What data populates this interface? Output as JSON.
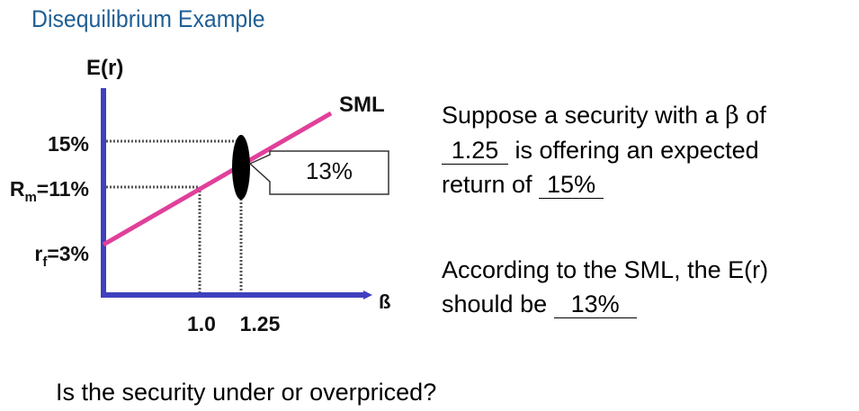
{
  "title": "Disequilibrium Example",
  "diagram": {
    "y_axis_label": "E(r)",
    "x_axis_label": "ß",
    "line_label": "SML",
    "y_ticks": [
      {
        "label": "15%"
      },
      {
        "label_main": "R",
        "label_sub": "m",
        "label_rest": "=11%"
      },
      {
        "label_main": "r",
        "label_sub": "f",
        "label_rest": "=3%"
      }
    ],
    "x_ticks": [
      "1.0",
      "1.25"
    ],
    "callout": "13%",
    "colors": {
      "axis": "#4040c0",
      "sml_line": "#e0409a",
      "dotted": "#555555",
      "marker": "#000000"
    }
  },
  "statement": {
    "line1_pre": "Suppose a security with a ",
    "beta_symbol": "β",
    "line1_post": " of",
    "beta_value": "1.25",
    "line2_post": " is offering an expected",
    "line3_pre": "return of ",
    "offered_return": "15%"
  },
  "conclusion": {
    "line1": "According to the SML, the E(r)",
    "line2_pre": "should be ",
    "sml_return": "13%"
  },
  "question": "Is the security under or overpriced?"
}
